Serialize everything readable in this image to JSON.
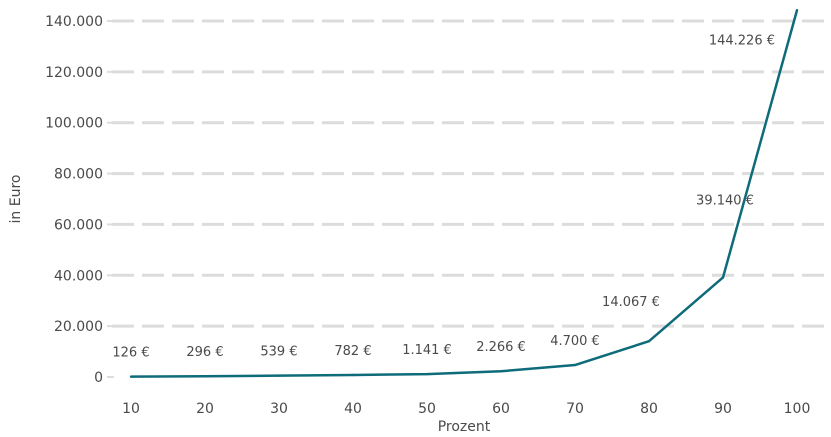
{
  "chart_data": {
    "type": "line",
    "xlabel": "Prozent",
    "ylabel": "in Euro",
    "x": [
      10,
      20,
      30,
      40,
      50,
      60,
      70,
      80,
      90,
      100
    ],
    "x_tick_labels": [
      "10",
      "20",
      "30",
      "40",
      "50",
      "60",
      "70",
      "80",
      "90",
      "100"
    ],
    "y_ticks": [
      0,
      20000,
      40000,
      60000,
      80000,
      100000,
      120000,
      140000
    ],
    "y_tick_labels": [
      "0",
      "20.000",
      "40.000",
      "60.000",
      "80.000",
      "100.000",
      "120.000",
      "140.000"
    ],
    "ylim": [
      0,
      140000
    ],
    "grid": true,
    "series": [
      {
        "values": [
          126,
          296,
          539,
          782,
          1141,
          2266,
          4700,
          14067,
          39140,
          144226
        ],
        "labels": [
          "126 €",
          "296 €",
          "539 €",
          "782 €",
          "1.141 €",
          "2.266 €",
          "4.700 €",
          "14.067 €",
          "39.140 €",
          "144.226 €"
        ],
        "color": "#0e6b7a"
      }
    ]
  }
}
